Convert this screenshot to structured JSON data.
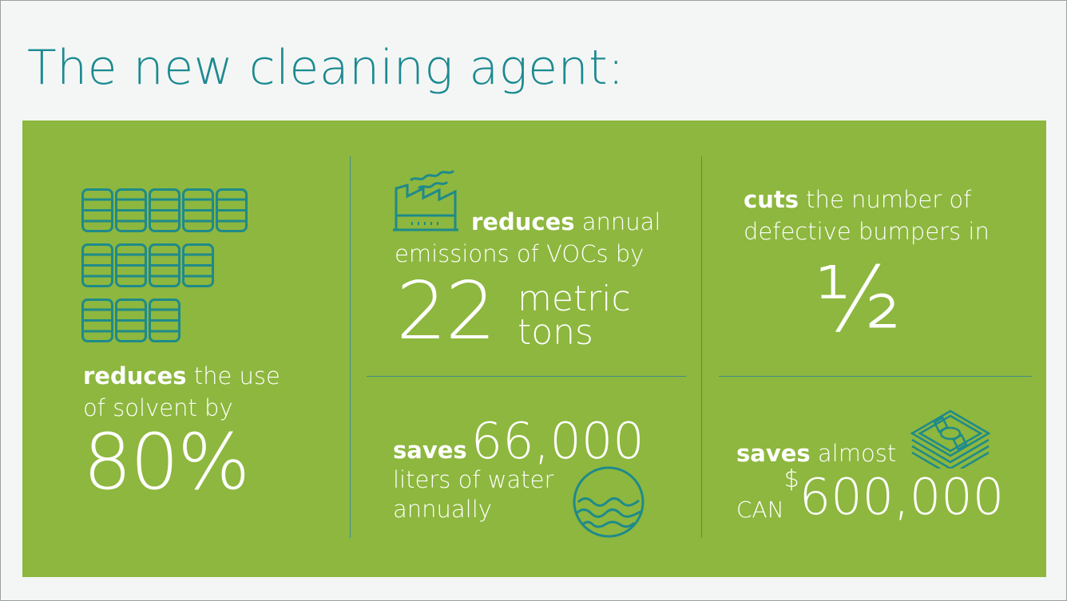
{
  "title": "The new cleaning agent:",
  "colors": {
    "panel": "#8db73e",
    "accent": "#1b8a91",
    "icon_stroke": "#1f8a8a",
    "text": "#ffffff"
  },
  "stat_solvent": {
    "bold": "reduces",
    "line1_rest": " the use",
    "line2": "of solvent by",
    "value": "80%",
    "icon": "barrels-icon"
  },
  "stat_vocs": {
    "bold": "reduces",
    "line1_rest": " annual",
    "line2": "emissions of VOCs by",
    "value": "22",
    "unit_line1": "metric",
    "unit_line2": "tons",
    "icon": "factory-icon"
  },
  "stat_defects": {
    "bold": "cuts",
    "line1_rest": " the number of",
    "line2": "defective bumpers in",
    "value": "½"
  },
  "stat_water": {
    "bold": "saves",
    "value": "66,000",
    "line2": "liters of water",
    "line3": "annually",
    "icon": "water-icon"
  },
  "stat_money": {
    "bold": "saves",
    "line1_rest": " almost",
    "currency": "CAN",
    "symbol": "$",
    "value": "600,000",
    "icon": "money-stack-icon"
  }
}
